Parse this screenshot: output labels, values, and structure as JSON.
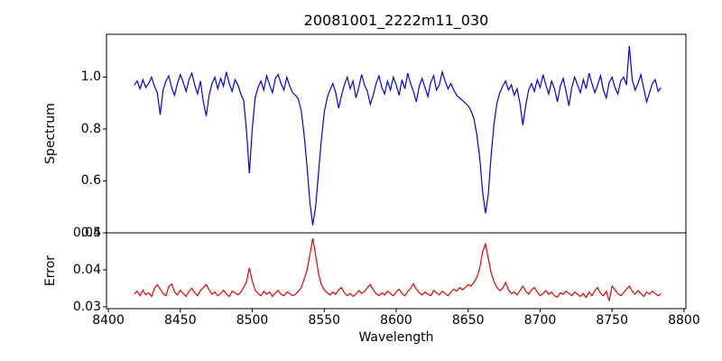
{
  "accent_colors": {
    "spectrum_line": "#0000ee",
    "error_line": "#ee0000",
    "axis": "#000000"
  },
  "chart_data": {
    "type": "line",
    "title": "20081001_2222m11_030",
    "xlabel": "Wavelength",
    "x_start": 8418,
    "x_step": 2,
    "xlim": [
      8398.7,
      8801.3
    ],
    "x_tick_vals": [
      8400,
      8450,
      8500,
      8550,
      8600,
      8650,
      8700,
      8750,
      8800
    ],
    "x_tick_labels": [
      "8400",
      "8450",
      "8500",
      "8550",
      "8600",
      "8650",
      "8700",
      "8750",
      "8800"
    ],
    "grid": false,
    "legend": "none",
    "panels": [
      {
        "ylabel": "Spectrum",
        "ylim": [
          0.4,
          1.165
        ],
        "y_tick_vals": [
          0.4,
          0.6,
          0.8,
          1.0
        ],
        "y_tick_labels": [
          "0.4",
          "0.6",
          "0.8",
          "1.0"
        ],
        "series": [
          {
            "name": "spectrum",
            "color": "#0000ee",
            "values": [
              0.97,
              0.985,
              0.955,
              0.99,
              0.96,
              0.975,
              1.0,
              0.965,
              0.94,
              0.855,
              0.95,
              0.985,
              1.005,
              0.96,
              0.93,
              0.975,
              1.01,
              0.98,
              0.945,
              0.99,
              1.015,
              0.97,
              0.935,
              0.985,
              0.905,
              0.85,
              0.93,
              0.975,
              1.0,
              0.955,
              0.995,
              0.965,
              1.02,
              0.975,
              0.945,
              0.99,
              0.97,
              0.935,
              0.91,
              0.79,
              0.63,
              0.8,
              0.92,
              0.96,
              0.985,
              0.95,
              1.005,
              0.97,
              0.94,
              0.995,
              1.01,
              0.975,
              0.95,
              1.0,
              0.965,
              0.94,
              0.93,
              0.915,
              0.87,
              0.78,
              0.66,
              0.52,
              0.43,
              0.5,
              0.63,
              0.76,
              0.865,
              0.92,
              0.95,
              0.975,
              0.94,
              0.88,
              0.93,
              0.97,
              1.0,
              0.955,
              0.985,
              0.92,
              0.96,
              1.01,
              0.97,
              0.945,
              0.895,
              0.93,
              0.975,
              1.005,
              0.96,
              0.935,
              0.985,
              0.95,
              1.0,
              0.97,
              0.93,
              0.99,
              0.955,
              1.015,
              0.975,
              0.945,
              0.905,
              0.965,
              0.995,
              0.96,
              0.925,
              0.98,
              1.005,
              0.95,
              0.97,
              1.02,
              0.985,
              0.955,
              0.975,
              0.95,
              0.93,
              0.92,
              0.91,
              0.9,
              0.89,
              0.87,
              0.84,
              0.78,
              0.69,
              0.56,
              0.475,
              0.55,
              0.7,
              0.82,
              0.9,
              0.94,
              0.965,
              0.985,
              0.95,
              0.97,
              0.93,
              0.955,
              0.9,
              0.815,
              0.89,
              0.95,
              0.975,
              0.945,
              0.99,
              0.96,
              1.01,
              0.97,
              0.935,
              0.985,
              0.955,
              0.905,
              0.965,
              0.995,
              0.945,
              0.89,
              0.96,
              1.0,
              0.97,
              0.94,
              0.99,
              0.955,
              1.015,
              0.975,
              0.94,
              0.97,
              1.005,
              0.95,
              0.92,
              0.98,
              1.0,
              0.96,
              0.935,
              0.985,
              1.0,
              0.97,
              1.12,
              0.99,
              0.95,
              0.975,
              1.01,
              0.955,
              0.905,
              0.94,
              0.975,
              0.99,
              0.945,
              0.96
            ]
          }
        ]
      },
      {
        "ylabel": "Error",
        "ylim": [
          0.0295,
          0.05
        ],
        "y_tick_vals": [
          0.03,
          0.04,
          0.05
        ],
        "y_tick_labels": [
          "0.03",
          "0.04",
          "0.05"
        ],
        "series": [
          {
            "name": "error",
            "color": "#ee0000",
            "values": [
              0.0335,
              0.0342,
              0.033,
              0.0345,
              0.0332,
              0.0338,
              0.0328,
              0.035,
              0.036,
              0.0348,
              0.0336,
              0.033,
              0.0355,
              0.0362,
              0.034,
              0.0332,
              0.0345,
              0.0336,
              0.0328,
              0.0342,
              0.035,
              0.0338,
              0.033,
              0.0344,
              0.0352,
              0.036,
              0.0346,
              0.0334,
              0.034,
              0.033,
              0.0336,
              0.0345,
              0.0334,
              0.0328,
              0.0342,
              0.0338,
              0.0332,
              0.034,
              0.0352,
              0.0368,
              0.0405,
              0.037,
              0.0345,
              0.0336,
              0.033,
              0.0342,
              0.0334,
              0.034,
              0.0328,
              0.0338,
              0.0344,
              0.0334,
              0.033,
              0.034,
              0.0336,
              0.033,
              0.0334,
              0.0342,
              0.0352,
              0.0374,
              0.0398,
              0.044,
              0.0485,
              0.044,
              0.039,
              0.036,
              0.0346,
              0.0338,
              0.0332,
              0.034,
              0.0334,
              0.0346,
              0.0352,
              0.0338,
              0.033,
              0.0336,
              0.0328,
              0.0334,
              0.0344,
              0.0336,
              0.0342,
              0.0352,
              0.036,
              0.0346,
              0.0336,
              0.033,
              0.0338,
              0.0332,
              0.0342,
              0.0336,
              0.033,
              0.034,
              0.0348,
              0.0336,
              0.033,
              0.0342,
              0.035,
              0.0362,
              0.0348,
              0.0338,
              0.0332,
              0.034,
              0.0334,
              0.033,
              0.0344,
              0.0338,
              0.0332,
              0.0342,
              0.0336,
              0.033,
              0.034,
              0.0348,
              0.0342,
              0.0352,
              0.0346,
              0.0352,
              0.036,
              0.0356,
              0.0366,
              0.038,
              0.0404,
              0.0448,
              0.047,
              0.043,
              0.0392,
              0.0368,
              0.0352,
              0.0344,
              0.035,
              0.0366,
              0.0346,
              0.0336,
              0.034,
              0.0332,
              0.0344,
              0.0356,
              0.0342,
              0.0334,
              0.0346,
              0.0352,
              0.034,
              0.033,
              0.0336,
              0.0344,
              0.0334,
              0.034,
              0.033,
              0.0326,
              0.0338,
              0.0334,
              0.0342,
              0.0336,
              0.033,
              0.034,
              0.0334,
              0.0328,
              0.0336,
              0.0325,
              0.034,
              0.033,
              0.0344,
              0.0352,
              0.0336,
              0.033,
              0.0342,
              0.0316,
              0.0356,
              0.0346,
              0.0336,
              0.033,
              0.0338,
              0.0348,
              0.0356,
              0.0342,
              0.0334,
              0.0344,
              0.0336,
              0.0328,
              0.034,
              0.0334,
              0.0342,
              0.0336,
              0.033,
              0.0336
            ]
          }
        ]
      }
    ]
  }
}
